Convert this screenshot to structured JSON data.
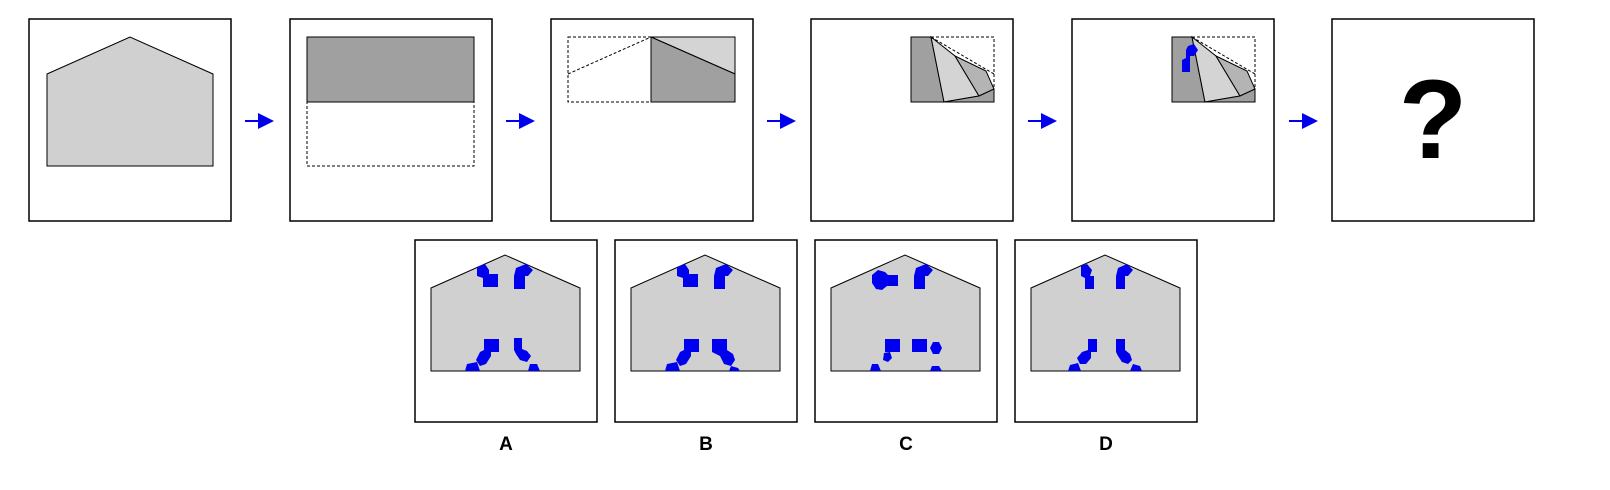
{
  "puzzle": {
    "question_symbol": "?",
    "steps": [
      "house-shape",
      "fold-top-down",
      "fold-left-right",
      "fold-diagonal",
      "punch-holes",
      "unknown"
    ],
    "options": [
      {
        "label": "A"
      },
      {
        "label": "B"
      },
      {
        "label": "C"
      },
      {
        "label": "D"
      }
    ]
  },
  "colors": {
    "paper": "#d0d0d0",
    "folded_layer": "#a0a0a0",
    "light_layer": "#d4d4d4",
    "hole": "#0000ee",
    "arrow": "#0000ee",
    "outline": "#000000"
  },
  "icons": {
    "arrow": "arrow-right-icon",
    "hole": "hole-mark-icon"
  }
}
